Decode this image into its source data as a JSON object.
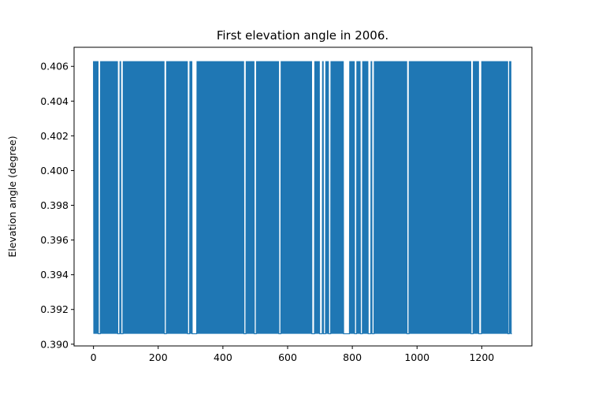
{
  "chart_data": {
    "type": "line",
    "title": "First elevation angle in 2006.",
    "xlabel": "",
    "ylabel": "Elevation angle (degree)",
    "xlim": [
      -60,
      1355
    ],
    "ylim": [
      0.3899,
      0.4071
    ],
    "x_ticks": [
      0,
      200,
      400,
      600,
      800,
      1000,
      1200
    ],
    "x_tick_labels": [
      "0",
      "200",
      "400",
      "600",
      "800",
      "1000",
      "1200"
    ],
    "y_ticks": [
      0.39,
      0.392,
      0.394,
      0.396,
      0.398,
      0.4,
      0.402,
      0.404,
      0.406
    ],
    "y_tick_labels": [
      "0.390",
      "0.392",
      "0.394",
      "0.396",
      "0.398",
      "0.400",
      "0.402",
      "0.404",
      "0.406"
    ],
    "grid": false,
    "series": [
      {
        "color": "#1f77b4",
        "x_start": 0,
        "x_end": 1293,
        "high_value": 0.4063,
        "low_value": 0.3906,
        "pattern": "alternating between high_value and low_value at every sample",
        "low_runs": [
          [
            16,
            20
          ],
          [
            75,
            80
          ],
          [
            85,
            90
          ],
          [
            220,
            225
          ],
          [
            292,
            297
          ],
          [
            306,
            318
          ],
          [
            465,
            470
          ],
          [
            498,
            503
          ],
          [
            573,
            578
          ],
          [
            676,
            682
          ],
          [
            700,
            706
          ],
          [
            712,
            717
          ],
          [
            727,
            732
          ],
          [
            773,
            790
          ],
          [
            808,
            813
          ],
          [
            825,
            830
          ],
          [
            850,
            856
          ],
          [
            862,
            867
          ],
          [
            970,
            975
          ],
          [
            1168,
            1173
          ],
          [
            1192,
            1198
          ],
          [
            1281,
            1285
          ],
          [
            1292,
            1293
          ]
        ]
      }
    ]
  }
}
